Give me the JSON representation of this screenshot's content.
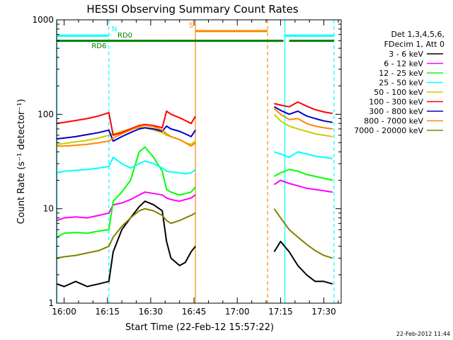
{
  "chart_data": {
    "type": "line",
    "title": "HESSI Observing Summary Count Rates",
    "xlabel": "Start Time (22-Feb-12 15:57:22)",
    "ylabel": "Count Rate (s⁻¹ detector⁻¹)",
    "yscale": "log",
    "ylim": [
      1,
      1000
    ],
    "xlim_minutes_after_16_00": [
      -2.6,
      96.0
    ],
    "x_unit": "minutes after 16:00",
    "x_ticks": [
      {
        "value": 0,
        "label": "16:00"
      },
      {
        "value": 15,
        "label": "16:15"
      },
      {
        "value": 30,
        "label": "16:30"
      },
      {
        "value": 45,
        "label": "16:45"
      },
      {
        "value": 60,
        "label": "17:00"
      },
      {
        "value": 75,
        "label": "17:15"
      },
      {
        "value": 90,
        "label": "17:30"
      }
    ],
    "y_ticks": [
      {
        "value": 1,
        "label": "1"
      },
      {
        "value": 10,
        "label": "10"
      },
      {
        "value": 100,
        "label": "100"
      },
      {
        "value": 1000,
        "label": "1000"
      }
    ],
    "legend": {
      "placement": "right",
      "header": [
        "Det 1,3,4,5,6,",
        "FDecim 1, Att 0"
      ]
    },
    "footer_timestamp": "22-Feb-2012 11:44",
    "series": [
      {
        "name": "3 - 6 keV",
        "color": "#000000",
        "x": [
          -2.5,
          0,
          4,
          8,
          12,
          15.5,
          17,
          20,
          23,
          26,
          28,
          31,
          34,
          35.5,
          37,
          40,
          42,
          44,
          45.5,
          72.8,
          75,
          78,
          81,
          84,
          87,
          90,
          93
        ],
        "y": [
          1.6,
          1.5,
          1.7,
          1.5,
          1.6,
          1.7,
          3.5,
          6.0,
          8.0,
          10.5,
          12.0,
          11.0,
          9.5,
          4.5,
          3.0,
          2.5,
          2.7,
          3.5,
          4.0,
          3.5,
          4.5,
          3.5,
          2.5,
          2.0,
          1.7,
          1.7,
          1.6
        ]
      },
      {
        "name": "6 - 12 keV",
        "color": "#ff00ff",
        "x": [
          -2.5,
          0,
          4,
          8,
          12,
          15.5,
          17,
          20,
          23,
          26,
          28,
          31,
          34,
          35.5,
          37,
          40,
          42,
          44,
          45.5,
          72.8,
          75,
          78,
          81,
          84,
          87,
          90,
          93
        ],
        "y": [
          7.5,
          8.0,
          8.2,
          8.0,
          8.5,
          9.0,
          11.0,
          11.5,
          12.5,
          14.0,
          15.0,
          14.5,
          14.0,
          13.0,
          12.5,
          12.0,
          12.5,
          13.0,
          14.0,
          18.0,
          20.0,
          18.5,
          17.5,
          16.5,
          16.0,
          15.5,
          15.0
        ]
      },
      {
        "name": "12 - 25 keV",
        "color": "#00ff00",
        "x": [
          -2.5,
          0,
          4,
          8,
          12,
          15.5,
          17,
          20,
          23,
          26,
          28,
          31,
          34,
          35.5,
          37,
          40,
          42,
          44,
          45.5,
          72.8,
          75,
          78,
          81,
          84,
          87,
          90,
          93
        ],
        "y": [
          5.0,
          5.5,
          5.6,
          5.5,
          5.8,
          6.0,
          12.0,
          15.0,
          20.0,
          40.0,
          45.0,
          35.0,
          25.0,
          16.0,
          15.0,
          14.0,
          14.5,
          15.0,
          17.0,
          22.0,
          24.0,
          26.0,
          25.0,
          23.0,
          22.0,
          21.0,
          20.0
        ]
      },
      {
        "name": "25 - 50 keV",
        "color": "#00ffff",
        "x": [
          -2.5,
          0,
          4,
          8,
          12,
          15.5,
          17,
          20,
          23,
          26,
          28,
          31,
          34,
          35.5,
          37,
          40,
          42,
          44,
          45.5,
          72.8,
          75,
          78,
          81,
          84,
          87,
          90,
          93
        ],
        "y": [
          24.0,
          25.0,
          25.5,
          26.0,
          27.0,
          28.0,
          35.0,
          30.0,
          27.0,
          30.0,
          32.0,
          30.0,
          27.0,
          25.0,
          24.5,
          24.0,
          23.5,
          24.0,
          26.0,
          40.0,
          38.0,
          35.0,
          40.0,
          38.0,
          36.0,
          35.0,
          34.0
        ]
      },
      {
        "name": "50 - 100 keV",
        "color": "#cccc00",
        "x": [
          -2.5,
          0,
          4,
          8,
          12,
          15.5,
          17,
          20,
          23,
          26,
          28,
          31,
          34,
          35.5,
          37,
          40,
          42,
          44,
          45.5,
          72.8,
          75,
          78,
          81,
          84,
          87,
          90,
          93
        ],
        "y": [
          48.0,
          49.0,
          51.0,
          53.0,
          56.0,
          60.0,
          62.0,
          66.0,
          70.0,
          72.0,
          72.0,
          68.0,
          64.0,
          60.0,
          58.0,
          54.0,
          50.0,
          48.0,
          52.0,
          100.0,
          85.0,
          75.0,
          70.0,
          66.0,
          62.0,
          60.0,
          58.0
        ]
      },
      {
        "name": "100 - 300 keV",
        "color": "#ff0000",
        "x": [
          -2.5,
          0,
          4,
          8,
          12,
          15.5,
          17,
          20,
          23,
          26,
          28,
          31,
          34,
          35.5,
          37,
          40,
          42,
          44,
          45.5,
          72.8,
          75,
          78,
          81,
          84,
          87,
          90,
          93
        ],
        "y": [
          80.0,
          82.0,
          86.0,
          90.0,
          96.0,
          104.0,
          60.0,
          64.0,
          70.0,
          76.0,
          78.0,
          76.0,
          72.0,
          108.0,
          100.0,
          92.0,
          86.0,
          80.0,
          95.0,
          130.0,
          125.0,
          120.0,
          135.0,
          122.0,
          112.0,
          106.0,
          102.0
        ]
      },
      {
        "name": "300 - 800 keV",
        "color": "#0000cc",
        "x": [
          -2.5,
          0,
          4,
          8,
          12,
          15.5,
          17,
          20,
          23,
          26,
          28,
          31,
          34,
          35.5,
          37,
          40,
          42,
          44,
          45.5,
          72.8,
          75,
          78,
          81,
          84,
          87,
          90,
          93
        ],
        "y": [
          55.0,
          56.0,
          58.0,
          61.0,
          64.0,
          68.0,
          52.0,
          58.0,
          64.0,
          70.0,
          72.0,
          70.0,
          66.0,
          75.0,
          70.0,
          66.0,
          62.0,
          58.0,
          68.0,
          120.0,
          110.0,
          100.0,
          108.0,
          96.0,
          90.0,
          85.0,
          82.0
        ]
      },
      {
        "name": "800 - 7000 keV",
        "color": "#ff8800",
        "x": [
          -2.5,
          0,
          4,
          8,
          12,
          15.5,
          17,
          20,
          23,
          26,
          28,
          31,
          34,
          35.5,
          37,
          40,
          42,
          44,
          45.5,
          72.8,
          75,
          78,
          81,
          84,
          87,
          90,
          93
        ],
        "y": [
          46.0,
          46.0,
          47.0,
          48.0,
          50.0,
          52.0,
          56.0,
          62.0,
          68.0,
          74.0,
          76.0,
          74.0,
          68.0,
          62.0,
          58.0,
          54.0,
          50.0,
          46.0,
          50.0,
          115.0,
          100.0,
          88.0,
          90.0,
          80.0,
          75.0,
          72.0,
          70.0
        ]
      },
      {
        "name": "7000 - 20000 keV",
        "color": "#808000",
        "x": [
          -2.5,
          0,
          4,
          8,
          12,
          15.5,
          17,
          20,
          23,
          26,
          28,
          31,
          34,
          35.5,
          37,
          40,
          42,
          44,
          45.5,
          72.8,
          75,
          78,
          81,
          84,
          87,
          90,
          93
        ],
        "y": [
          3.0,
          3.1,
          3.2,
          3.4,
          3.6,
          4.0,
          5.0,
          6.5,
          8.0,
          9.5,
          10.0,
          9.5,
          8.5,
          7.5,
          7.0,
          7.5,
          8.0,
          8.5,
          9.0,
          10.0,
          8.0,
          6.0,
          5.0,
          4.2,
          3.6,
          3.2,
          3.0
        ]
      }
    ],
    "markers": [
      {
        "label": "N",
        "color": "#00ffff",
        "y": 680,
        "segments": [
          [
            -2.5,
            15.5
          ],
          [
            76.5,
            93.5
          ]
        ]
      },
      {
        "label": "RD0",
        "color": "#008000",
        "y": 600,
        "segments": [
          [
            -2.5,
            15.5
          ],
          [
            15.5,
            35.5
          ],
          [
            35.5,
            70.5
          ],
          [
            70.5,
            76
          ],
          [
            78,
            93.5
          ]
        ]
      },
      {
        "label": "S",
        "color": "#ff8800",
        "y": 760,
        "segments": [
          [
            45.5,
            70.5
          ]
        ]
      }
    ],
    "marker_labels": [
      {
        "text": "N",
        "color": "#00ffff",
        "x": 16.5,
        "y": 760
      },
      {
        "text": "RD0",
        "color": "#008000",
        "x": 18.5,
        "y": 650
      },
      {
        "text": "RD6",
        "color": "#008000",
        "x": 9.5,
        "y": 500
      },
      {
        "text": "S",
        "color": "#ff8800",
        "x": 43.2,
        "y": 830
      }
    ],
    "vertical_lines": [
      {
        "x": -2.5,
        "color": "#00ffff",
        "style": "solid"
      },
      {
        "x": 15.5,
        "color": "#00ffff",
        "style": "dashed"
      },
      {
        "x": 45.5,
        "color": "#ff8800",
        "style": "solid"
      },
      {
        "x": 70.5,
        "color": "#ff8800",
        "style": "dashed"
      },
      {
        "x": 76.5,
        "color": "#00ffff",
        "style": "solid"
      },
      {
        "x": 93.5,
        "color": "#00ffff",
        "style": "dashed"
      }
    ]
  }
}
